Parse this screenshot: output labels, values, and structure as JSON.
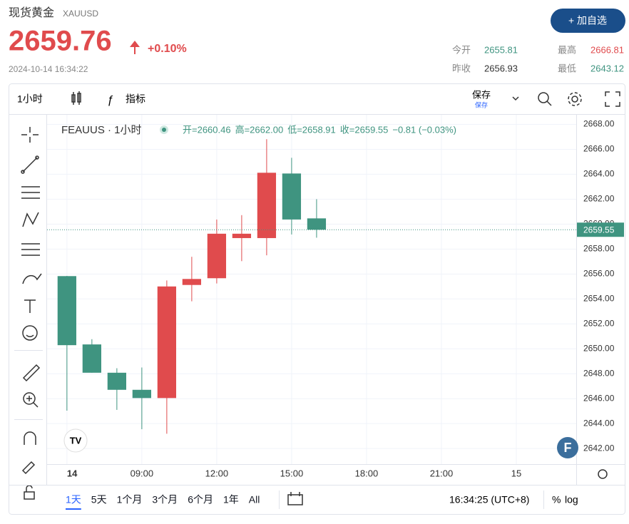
{
  "header": {
    "title": "现货黄金",
    "symbol": "XAUUSD",
    "price": "2659.76",
    "change": "+0.10%",
    "timestamp": "2024-10-14 16:34:22",
    "button": "+ 加自选",
    "stats": [
      {
        "label": "今开",
        "value": "2655.81"
      },
      {
        "label": "最高",
        "value": "2666.81"
      },
      {
        "label": "昨收",
        "value": "2656.93"
      },
      {
        "label": "最低",
        "value": "2643.12"
      }
    ]
  },
  "toolbar": {
    "interval": "1小时",
    "indicators": "指标",
    "save": "保存",
    "save_sub": "保存"
  },
  "legend": {
    "name": "FEAUUS · 1小时",
    "ohlc": [
      "开=2660.46",
      "高=2662.00",
      "低=2658.91",
      "收=2659.55",
      "−0.81 (−0.03%)"
    ]
  },
  "footer": {
    "ranges": [
      "1天",
      "5天",
      "1个月",
      "3个月",
      "6个月",
      "1年",
      "All"
    ],
    "clock": "16:34:25 (UTC+8)",
    "percent": "%",
    "log": "log"
  },
  "chart_data": {
    "type": "candlestick",
    "up_color": "#e04b4d",
    "down_color": "#3f9480",
    "x": [
      6,
      7,
      8,
      9,
      10,
      11,
      12,
      13,
      14,
      15,
      16
    ],
    "open": [
      2655.83,
      2650.35,
      2648.08,
      2646.71,
      2646.05,
      2655.12,
      2655.66,
      2658.88,
      2658.88,
      2664.06,
      2660.46
    ],
    "high": [
      2655.85,
      2650.77,
      2648.44,
      2648.5,
      2655.48,
      2657.38,
      2660.37,
      2660.72,
      2666.81,
      2665.32,
      2662.0
    ],
    "low": [
      2645.04,
      2648.08,
      2645.1,
      2643.55,
      2643.19,
      2653.81,
      2655.24,
      2657.03,
      2657.5,
      2659.17,
      2658.91
    ],
    "close": [
      2650.29,
      2648.08,
      2646.71,
      2646.05,
      2655.0,
      2655.6,
      2659.23,
      2659.23,
      2664.12,
      2660.37,
      2659.55
    ],
    "last_price": 2659.55,
    "xlim": [
      5.49,
      26.4
    ],
    "xticks": [
      {
        "value": 6,
        "label": "14"
      },
      {
        "value": 9,
        "label": "09:00"
      },
      {
        "value": 12,
        "label": "12:00"
      },
      {
        "value": 15,
        "label": "15:00"
      },
      {
        "value": 18,
        "label": "18:00"
      },
      {
        "value": 21,
        "label": "21:00"
      },
      {
        "value": 24,
        "label": "15"
      }
    ],
    "ylim": [
      2640.75,
      2668.77
    ],
    "yticks": [
      {
        "value": 2642,
        "label": "2642.00"
      },
      {
        "value": 2644,
        "label": "2644.00"
      },
      {
        "value": 2646,
        "label": "2646.00"
      },
      {
        "value": 2648,
        "label": "2648.00"
      },
      {
        "value": 2650,
        "label": "2650.00"
      },
      {
        "value": 2652,
        "label": "2652.00"
      },
      {
        "value": 2654,
        "label": "2654.00"
      },
      {
        "value": 2656,
        "label": "2656.00"
      },
      {
        "value": 2658,
        "label": "2658.00"
      },
      {
        "value": 2660,
        "label": "2660.00"
      },
      {
        "value": 2662,
        "label": "2662.00"
      },
      {
        "value": 2664,
        "label": "2664.00"
      },
      {
        "value": 2666,
        "label": "2666.00"
      },
      {
        "value": 2668,
        "label": "2668.00"
      }
    ],
    "grid": true
  }
}
